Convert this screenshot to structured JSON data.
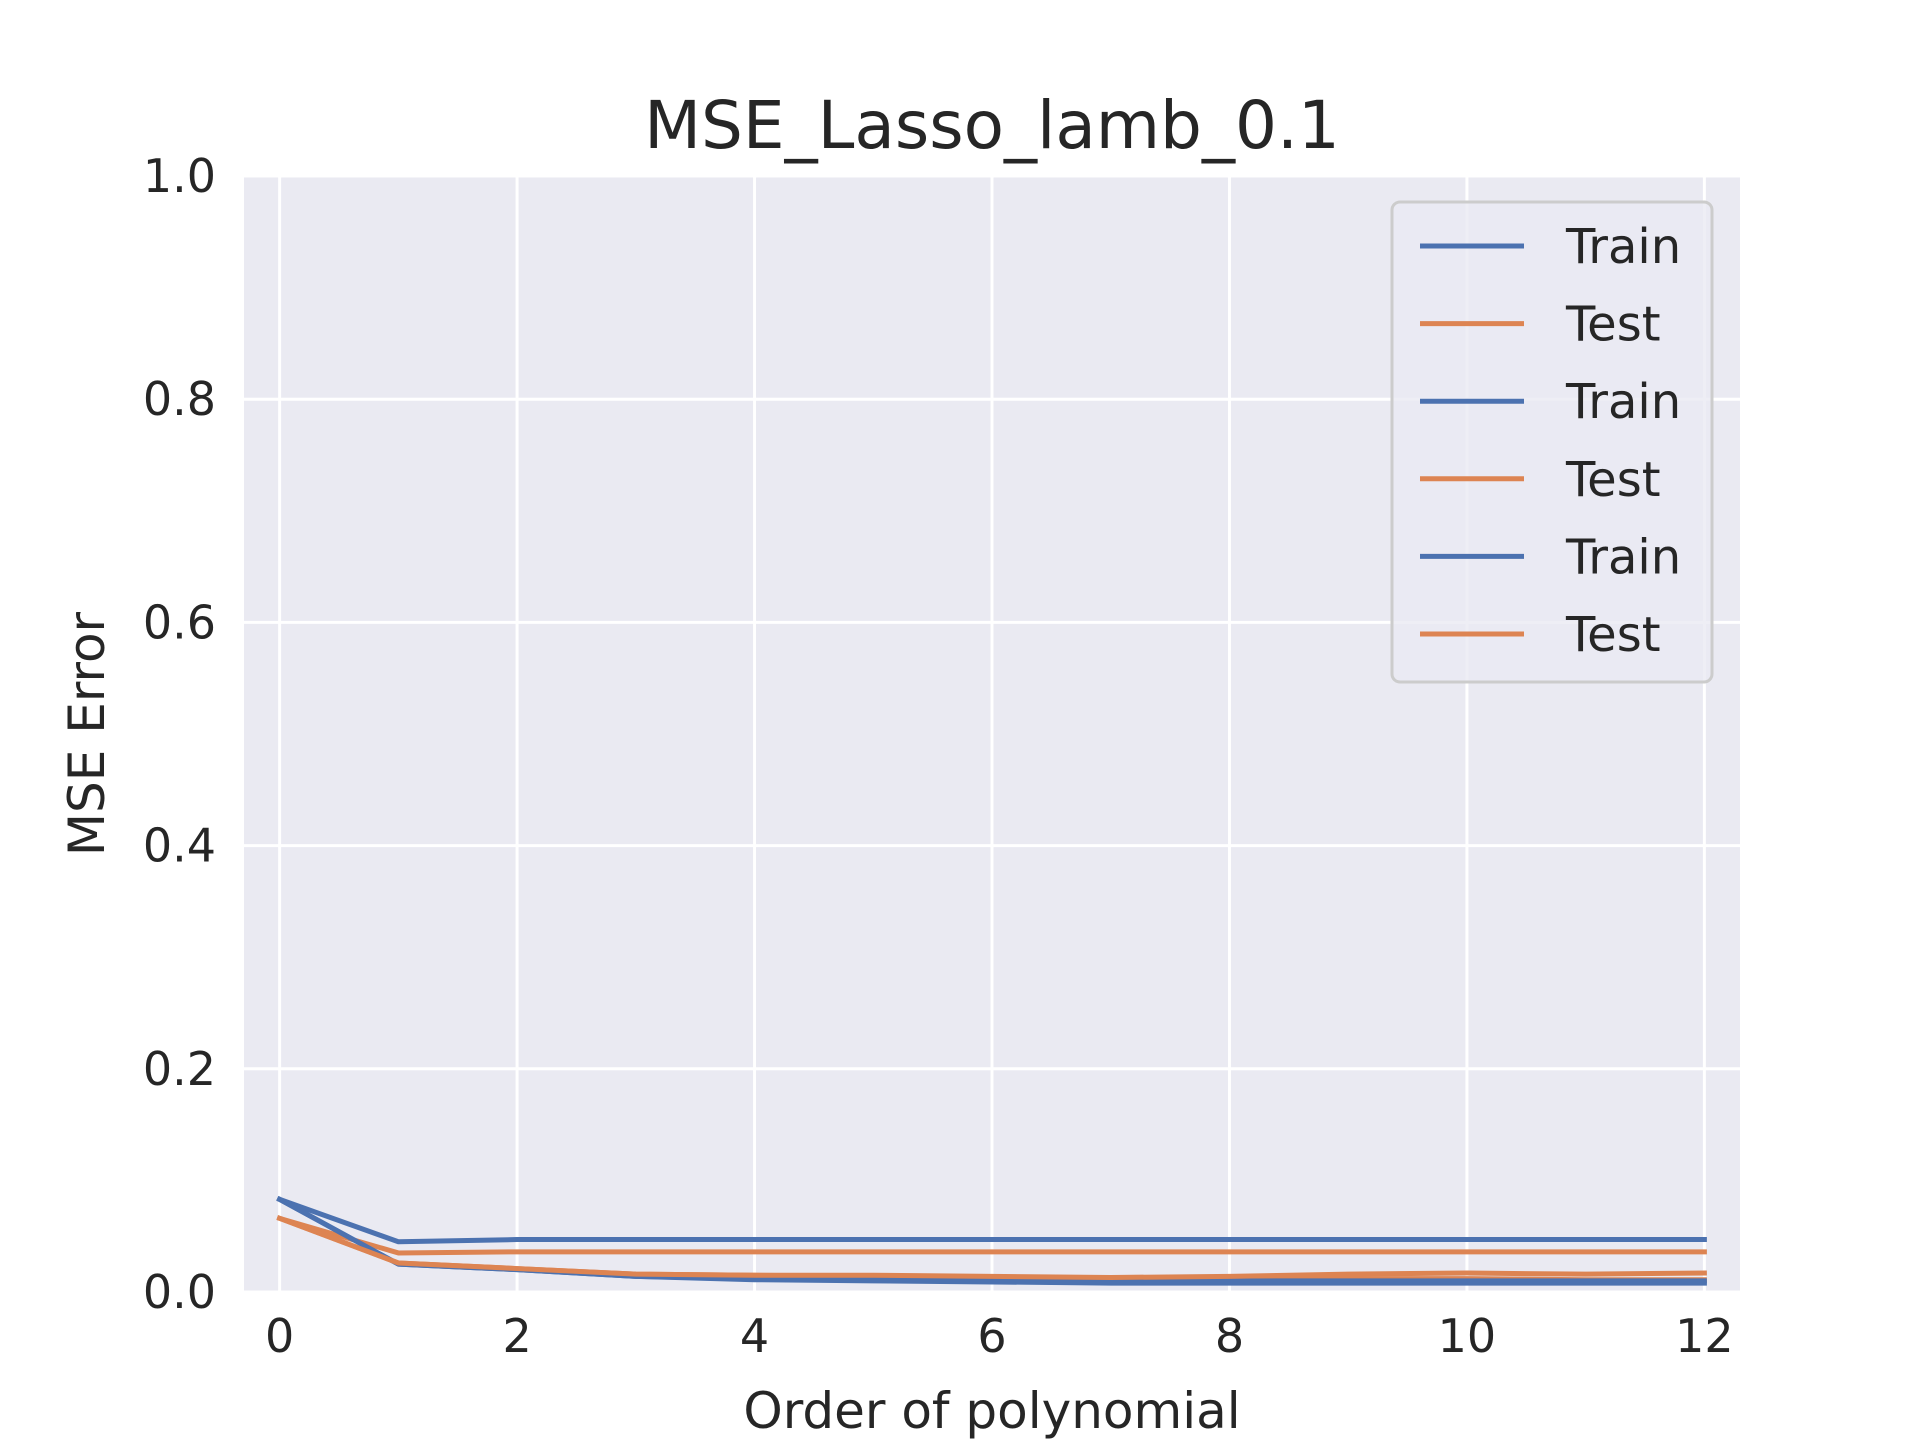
{
  "chart_data": {
    "type": "line",
    "title": "MSE_Lasso_lamb_0.1",
    "xlabel": "Order of polynomial",
    "ylabel": "MSE Error",
    "xlim": [
      -0.3,
      12.3
    ],
    "ylim": [
      0,
      1.0
    ],
    "x_ticks": [
      "0",
      "2",
      "4",
      "6",
      "8",
      "10",
      "12"
    ],
    "y_ticks": [
      "0.0",
      "0.2",
      "0.4",
      "0.6",
      "0.8",
      "1.0"
    ],
    "grid": true,
    "legend_position": "top-right",
    "x": [
      0,
      1,
      2,
      3,
      4,
      5,
      6,
      7,
      8,
      9,
      10,
      11,
      12
    ],
    "series": [
      {
        "name": "Train",
        "color": "#4c72b0",
        "values": [
          0.083,
          0.045,
          0.047,
          0.047,
          0.047,
          0.047,
          0.047,
          0.047,
          0.047,
          0.047,
          0.047,
          0.047,
          0.047
        ]
      },
      {
        "name": "Test",
        "color": "#dd8452",
        "values": [
          0.066,
          0.035,
          0.036,
          0.036,
          0.036,
          0.036,
          0.036,
          0.036,
          0.036,
          0.036,
          0.036,
          0.036,
          0.036
        ]
      },
      {
        "name": "Train",
        "color": "#4c72b0",
        "values": [
          0.083,
          0.025,
          0.02,
          0.014,
          0.011,
          0.01,
          0.009,
          0.008,
          0.008,
          0.008,
          0.008,
          0.008,
          0.008
        ]
      },
      {
        "name": "Test",
        "color": "#dd8452",
        "values": [
          0.066,
          0.026,
          0.021,
          0.016,
          0.015,
          0.014,
          0.013,
          0.012,
          0.012,
          0.012,
          0.012,
          0.011,
          0.011
        ]
      },
      {
        "name": "Train",
        "color": "#4c72b0",
        "values": [
          0.083,
          0.025,
          0.02,
          0.014,
          0.012,
          0.011,
          0.011,
          0.01,
          0.01,
          0.01,
          0.01,
          0.01,
          0.01
        ]
      },
      {
        "name": "Test",
        "color": "#dd8452",
        "values": [
          0.066,
          0.026,
          0.021,
          0.016,
          0.015,
          0.015,
          0.014,
          0.013,
          0.014,
          0.016,
          0.017,
          0.016,
          0.017
        ]
      }
    ]
  }
}
